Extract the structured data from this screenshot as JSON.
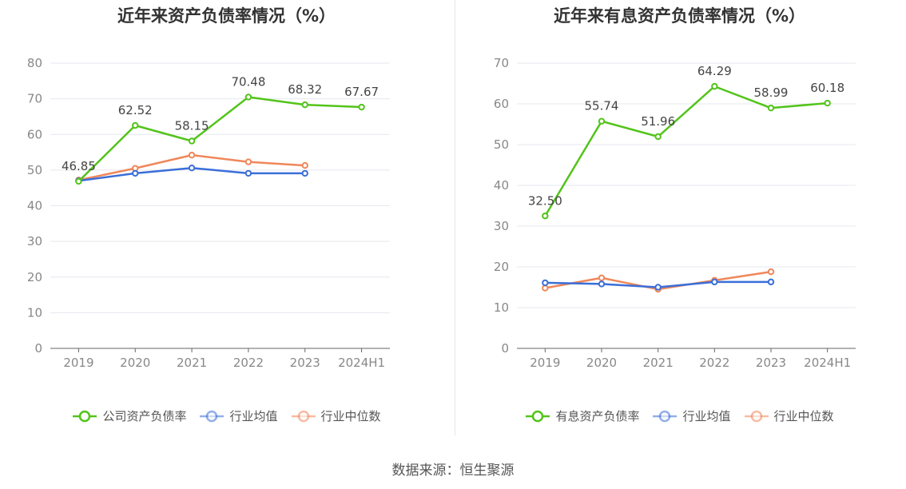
{
  "source_label": "数据来源：恒生聚源",
  "chart_data": [
    {
      "type": "line",
      "title": "近年来资产负债率情况（%）",
      "categories": [
        "2019",
        "2020",
        "2021",
        "2022",
        "2023",
        "2024H1"
      ],
      "ylim": [
        0,
        80
      ],
      "yticks": [
        0,
        10,
        20,
        30,
        40,
        50,
        60,
        70,
        80
      ],
      "grid": true,
      "legend_position": "bottom",
      "series": [
        {
          "name": "公司资产负债率",
          "color": "#52c41a",
          "values": [
            46.85,
            62.52,
            58.15,
            70.48,
            68.32,
            67.67
          ],
          "data_labels": [
            "46.85",
            "62.52",
            "58.15",
            "70.48",
            "68.32",
            "67.67"
          ]
        },
        {
          "name": "行业均值",
          "color": "#3b6fd8",
          "values": [
            47.0,
            49.1,
            50.6,
            49.1,
            49.1,
            null
          ],
          "data_labels": []
        },
        {
          "name": "行业中位数",
          "color": "#f0875a",
          "values": [
            47.2,
            50.5,
            54.2,
            52.3,
            51.3,
            null
          ],
          "data_labels": []
        }
      ]
    },
    {
      "type": "line",
      "title": "近年来有息资产负债率情况（%）",
      "categories": [
        "2019",
        "2020",
        "2021",
        "2022",
        "2023",
        "2024H1"
      ],
      "ylim": [
        0,
        70
      ],
      "yticks": [
        0,
        10,
        20,
        30,
        40,
        50,
        60,
        70
      ],
      "grid": true,
      "legend_position": "bottom",
      "series": [
        {
          "name": "有息资产负债率",
          "color": "#52c41a",
          "values": [
            32.5,
            55.74,
            51.96,
            64.29,
            58.99,
            60.18
          ],
          "data_labels": [
            "32.50",
            "55.74",
            "51.96",
            "64.29",
            "58.99",
            "60.18"
          ]
        },
        {
          "name": "行业均值",
          "color": "#3b6fd8",
          "values": [
            16.1,
            15.8,
            15.0,
            16.3,
            16.3,
            null
          ],
          "data_labels": []
        },
        {
          "name": "行业中位数",
          "color": "#f0875a",
          "values": [
            14.8,
            17.3,
            14.5,
            16.7,
            18.8,
            null
          ],
          "data_labels": []
        }
      ]
    }
  ]
}
